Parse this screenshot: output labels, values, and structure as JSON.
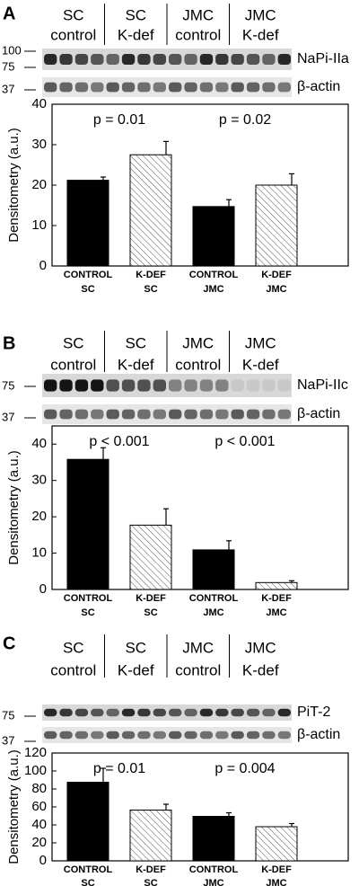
{
  "blots": [
    {
      "label": "A",
      "lane_groups": [
        [
          "SC",
          "control"
        ],
        [
          "SC",
          "K-def"
        ],
        [
          "JMC",
          "control"
        ],
        [
          "JMC",
          "K-def"
        ]
      ],
      "bands": [
        "NaPi-IIa",
        "β-actin"
      ],
      "markers": [
        "100",
        "75",
        "37"
      ]
    },
    {
      "label": "B",
      "lane_groups": [
        [
          "SC",
          "control"
        ],
        [
          "SC",
          "K-def"
        ],
        [
          "JMC",
          "control"
        ],
        [
          "JMC",
          "K-def"
        ]
      ],
      "bands": [
        "NaPi-IIc",
        "β-actin"
      ],
      "markers": [
        "75",
        "37"
      ]
    },
    {
      "label": "C",
      "lane_groups": [
        [
          "SC",
          "control"
        ],
        [
          "SC",
          "K-def"
        ],
        [
          "JMC",
          "control"
        ],
        [
          "JMC",
          "K-def"
        ]
      ],
      "bands": [
        "PiT-2",
        "β-actin"
      ],
      "markers": [
        "75",
        "37"
      ]
    }
  ],
  "chart_data": [
    {
      "type": "bar",
      "ylabel": "Densitometry (a.u.)",
      "categories": [
        [
          "CONTROL",
          "SC"
        ],
        [
          "K-DEF",
          "SC"
        ],
        [
          "CONTROL",
          "JMC"
        ],
        [
          "K-DEF",
          "JMC"
        ]
      ],
      "values": [
        21.2,
        27.5,
        14.7,
        20.0
      ],
      "errors": [
        0.8,
        3.3,
        1.7,
        2.8
      ],
      "colors": [
        "#000000",
        "#ffffff",
        "#000000",
        "#ffffff"
      ],
      "hatch": [
        false,
        true,
        false,
        true
      ],
      "annotations": [
        "p = 0.01",
        "p = 0.02"
      ],
      "ylim": [
        0,
        40
      ],
      "yticks": [
        0,
        10,
        20,
        30,
        40
      ]
    },
    {
      "type": "bar",
      "ylabel": "Densitometry (a.u.)",
      "categories": [
        [
          "CONTROL",
          "SC"
        ],
        [
          "K-DEF",
          "SC"
        ],
        [
          "CONTROL",
          "JMC"
        ],
        [
          "K-DEF",
          "JMC"
        ]
      ],
      "values": [
        35.8,
        17.7,
        10.9,
        1.9
      ],
      "errors": [
        3.2,
        4.5,
        2.5,
        0.5
      ],
      "colors": [
        "#000000",
        "#ffffff",
        "#000000",
        "#ffffff"
      ],
      "hatch": [
        false,
        true,
        false,
        true
      ],
      "annotations": [
        "p < 0.001",
        "p < 0.001"
      ],
      "ylim": [
        0,
        45
      ],
      "yticks": [
        0,
        10,
        20,
        30,
        40
      ]
    },
    {
      "type": "bar",
      "ylabel": "Densitometry (a.u.)",
      "categories": [
        [
          "CONTROL",
          "SC"
        ],
        [
          "K-DEF",
          "SC"
        ],
        [
          "CONTROL",
          "JMC"
        ],
        [
          "K-DEF",
          "JMC"
        ]
      ],
      "values": [
        87.5,
        56.5,
        49.5,
        38.0
      ],
      "errors": [
        15.5,
        6.5,
        4.0,
        3.5
      ],
      "colors": [
        "#000000",
        "#ffffff",
        "#000000",
        "#ffffff"
      ],
      "hatch": [
        false,
        true,
        false,
        true
      ],
      "annotations": [
        "p = 0.01",
        "p = 0.004"
      ],
      "ylim": [
        0,
        120
      ],
      "yticks": [
        0,
        20,
        40,
        60,
        80,
        100,
        120
      ]
    }
  ]
}
